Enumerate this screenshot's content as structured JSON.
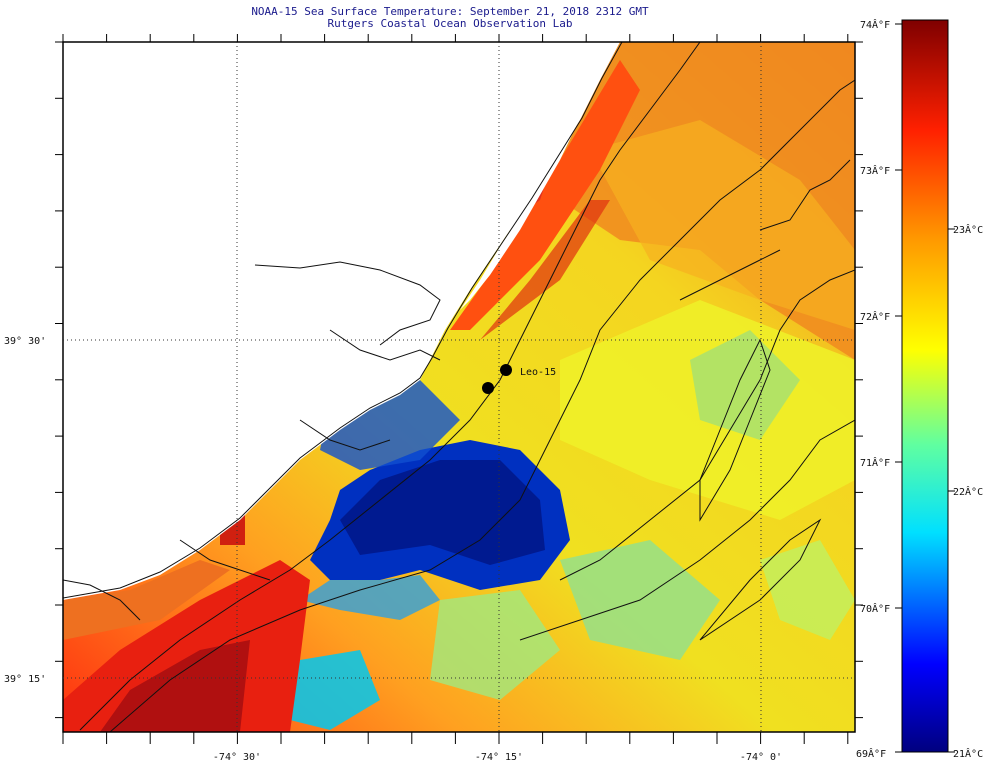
{
  "header": {
    "title": "NOAA-15 Sea Surface Temperature:  September 21, 2018 2312 GMT",
    "subtitle": "Rutgers Coastal Ocean Observation Lab"
  },
  "axes": {
    "y_ticks": [
      "39° 30'",
      "39° 15'"
    ],
    "x_ticks": [
      "-74° 30'",
      "-74° 15'",
      "-74° 0'"
    ]
  },
  "colorbar": {
    "labels_f": [
      "74Â°F",
      "73Â°F",
      "72Â°F",
      "71Â°F",
      "70Â°F",
      "69Â°F"
    ],
    "labels_c": [
      "23Â°C",
      "22Â°C",
      "21Â°C"
    ],
    "range_f": [
      69,
      74
    ],
    "range_c": [
      21,
      23.3
    ]
  },
  "markers": [
    {
      "label": "Leo-15"
    },
    {
      "label": ""
    }
  ],
  "colors": {
    "cold": "#001a80",
    "mid": "#f2f21a",
    "warm": "#e02010",
    "hot": "#8b0000",
    "land": "#ffffff"
  }
}
